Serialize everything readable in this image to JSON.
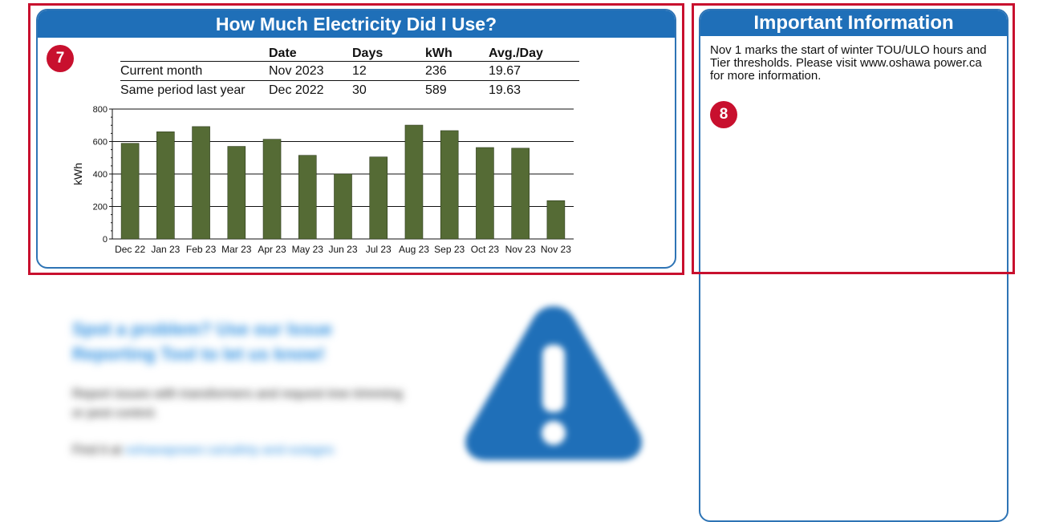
{
  "usage_panel": {
    "badge": "7",
    "title": "How Much Electricity Did I Use?",
    "table": {
      "headers": [
        "",
        "Date",
        "Days",
        "kWh",
        "Avg./Day"
      ],
      "rows": [
        [
          "Current month",
          "Nov 2023",
          "12",
          "236",
          "19.67"
        ],
        [
          "Same period last year",
          "Dec 2022",
          "30",
          "589",
          "19.63"
        ]
      ]
    }
  },
  "chart_data": {
    "type": "bar",
    "categories": [
      "Dec 22",
      "Jan 23",
      "Feb 23",
      "Mar 23",
      "Apr 23",
      "May 23",
      "Jun 23",
      "Jul 23",
      "Aug 23",
      "Sep 23",
      "Oct 23",
      "Nov 23",
      "Nov 23"
    ],
    "values": [
      589,
      660,
      692,
      570,
      614,
      515,
      400,
      505,
      701,
      667,
      563,
      559,
      236
    ],
    "xlabel": "",
    "ylabel": "kWh",
    "ylim": [
      0,
      800
    ],
    "yticks": [
      0,
      200,
      400,
      600,
      800
    ],
    "grid": true,
    "bar_color": "#556b35"
  },
  "info_panel": {
    "badge": "8",
    "title": "Important Information",
    "text": "Nov 1 marks the start of winter TOU/ULO hours and Tier thresholds. Please visit www.oshawa power.ca for more information."
  },
  "promo": {
    "title": "Spot a problem? Use our Issue Reporting Tool to let us know!",
    "body": "Report issues with transformers and request tree trimming or pest control.",
    "find_prefix": "Find it at",
    "link": "oshawapower.ca/safety-and-outages",
    "icon": "warning-triangle-icon"
  },
  "colors": {
    "header_blue": "#1f6fb8",
    "highlight_red": "#c8102e",
    "bar_green": "#556b35"
  }
}
